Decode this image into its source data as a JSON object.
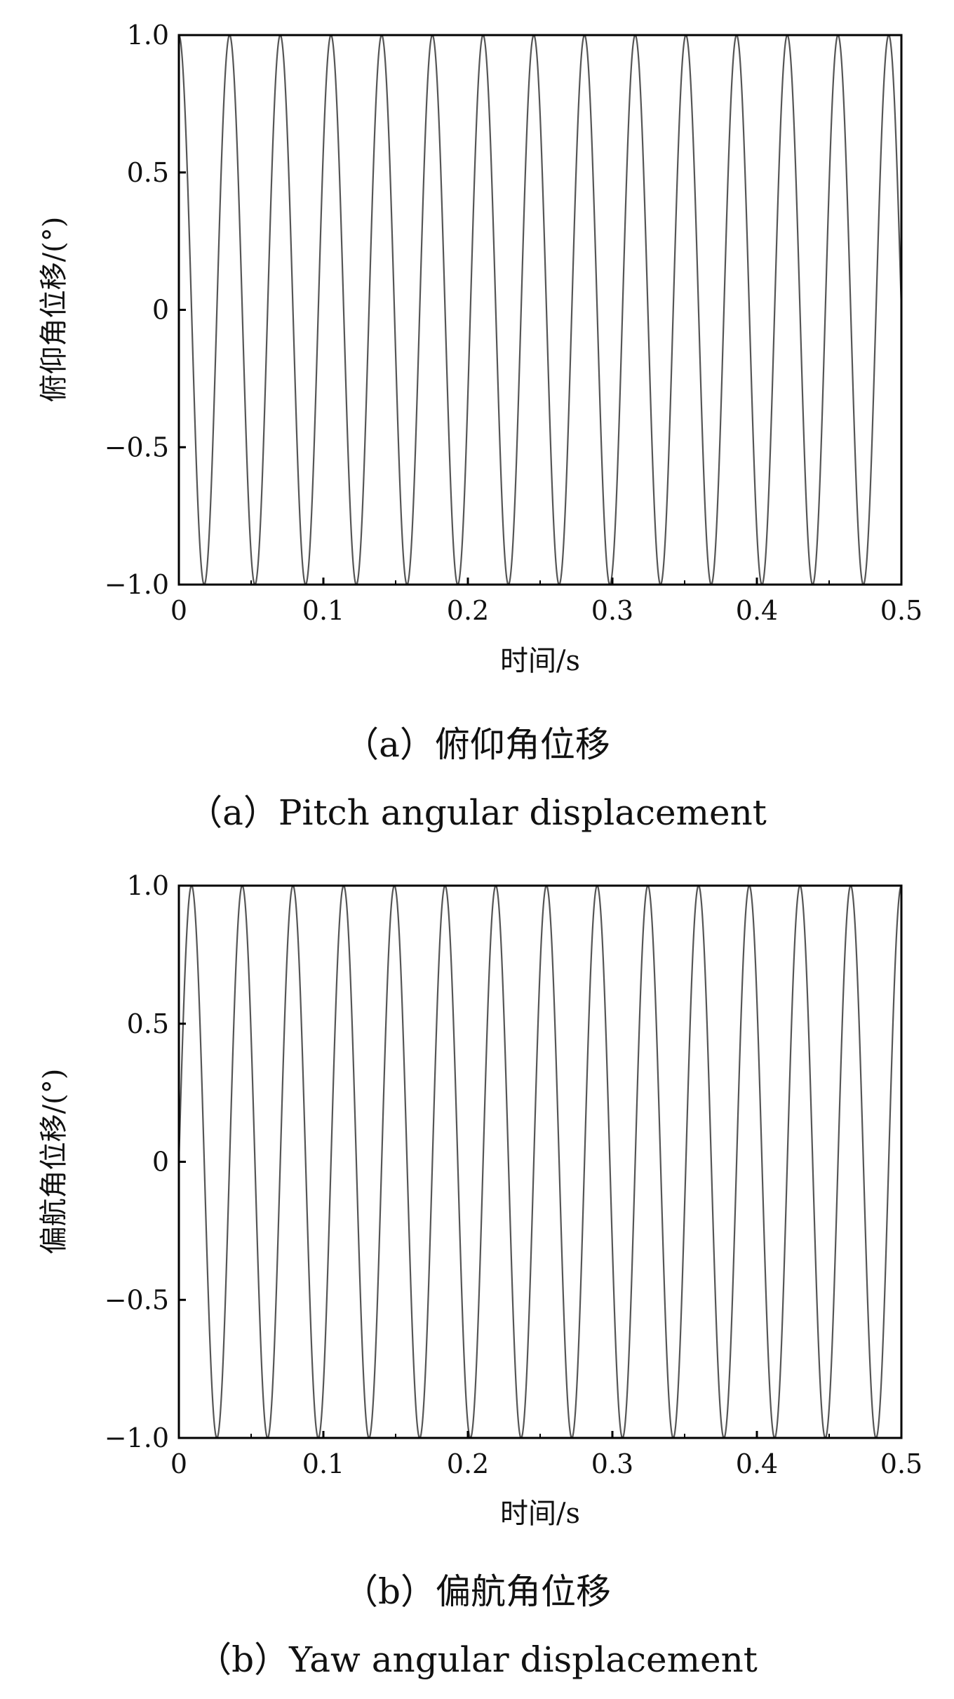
{
  "chart_data": [
    {
      "type": "line",
      "xlabel": "时间/s",
      "ylabel": "俯仰角位移/(°)",
      "caption_cn": "（a）俯仰角位移",
      "caption_en": "（a）Pitch angular displacement",
      "xlim": [
        0,
        0.5
      ],
      "ylim": [
        -1.0,
        1.0
      ],
      "x_ticks": [
        "0",
        "0.1",
        "0.2",
        "0.3",
        "0.4",
        "0.5"
      ],
      "y_ticks": [
        "1.0",
        "0.5",
        "0",
        "−0.5",
        "−1.0"
      ],
      "grid": false,
      "series": [
        {
          "function": "cos",
          "amplitude": 1.0,
          "frequency_hz": 28.5,
          "phase_deg": 0,
          "color": "#555555"
        }
      ]
    },
    {
      "type": "line",
      "xlabel": "时间/s",
      "ylabel": "偏航角位移/(°)",
      "caption_cn": "（b）偏航角位移",
      "caption_en": "（b）Yaw angular displacement",
      "xlim": [
        0,
        0.5
      ],
      "ylim": [
        -1.0,
        1.0
      ],
      "x_ticks": [
        "0",
        "0.1",
        "0.2",
        "0.3",
        "0.4",
        "0.5"
      ],
      "y_ticks": [
        "1.0",
        "0.5",
        "0",
        "−0.5",
        "−1.0"
      ],
      "grid": false,
      "series": [
        {
          "function": "sin",
          "amplitude": 1.0,
          "frequency_hz": 28.5,
          "phase_deg": 0,
          "color": "#555555"
        }
      ]
    }
  ]
}
